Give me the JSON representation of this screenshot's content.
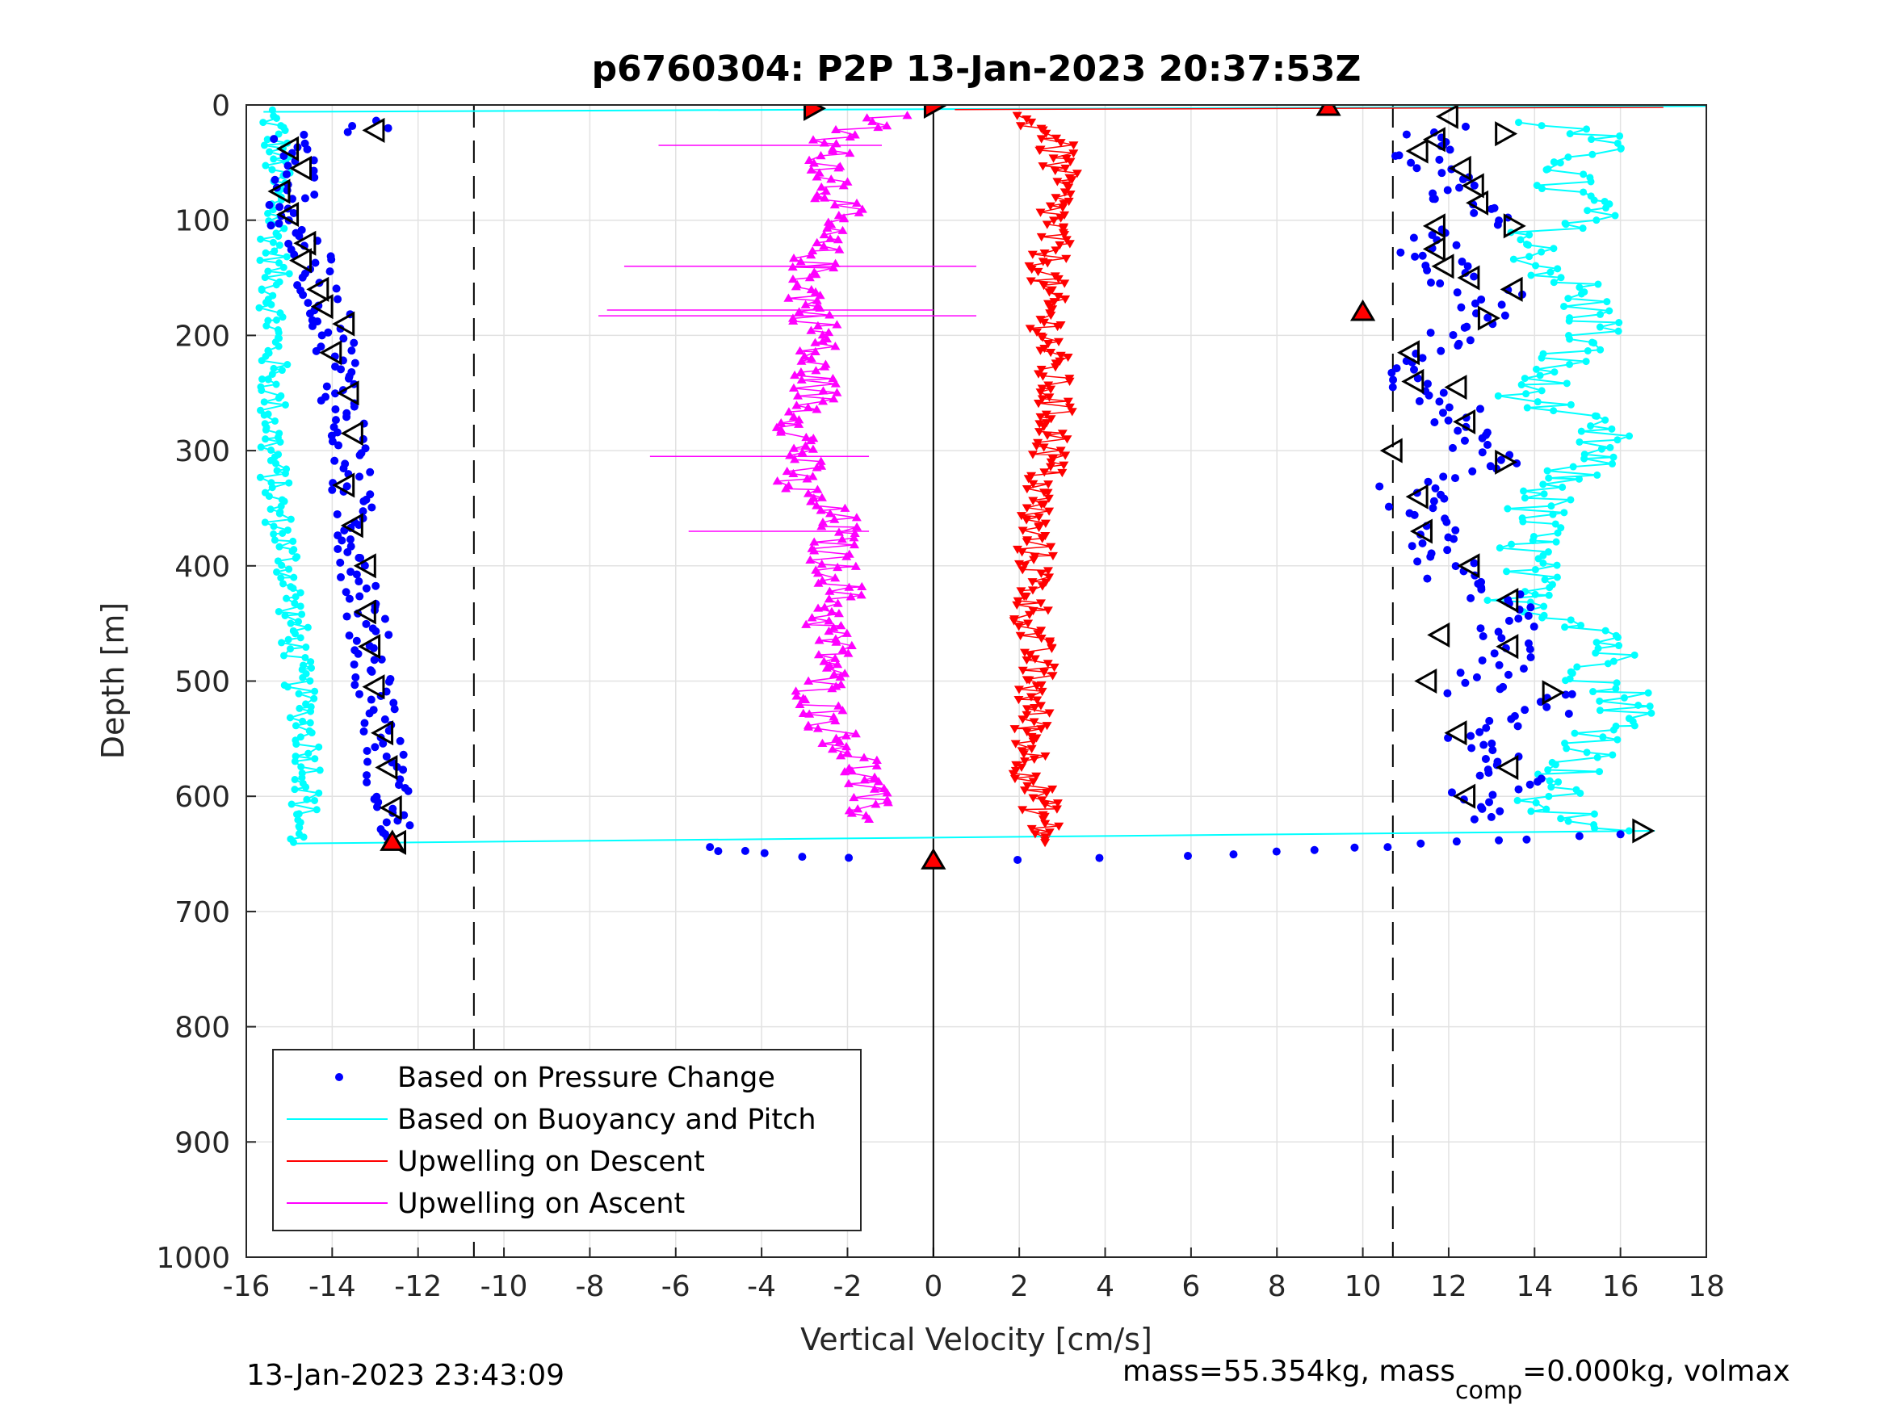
{
  "chart_data": {
    "type": "scatter",
    "title": "p6760304: P2P 13-Jan-2023 20:37:53Z",
    "xlabel": "Vertical Velocity [cm/s]",
    "ylabel": "Depth [m]",
    "xlim": [
      -16,
      18
    ],
    "ylim": [
      0,
      1000
    ],
    "y_reversed": true,
    "grid": true,
    "x_ticks": [
      "-16",
      "-14",
      "-12",
      "-10",
      "-8",
      "-6",
      "-4",
      "-2",
      "0",
      "2",
      "4",
      "6",
      "8",
      "10",
      "12",
      "14",
      "16",
      "18"
    ],
    "y_ticks": [
      "0",
      "100",
      "200",
      "300",
      "400",
      "500",
      "600",
      "700",
      "800",
      "900",
      "1000"
    ],
    "reference_lines": {
      "dashed_x": [
        -10.7,
        10.7
      ],
      "solid_x": [
        0
      ]
    },
    "legend_position": "bottom-left",
    "legend": [
      {
        "label": "Based on Pressure Change",
        "color": "#0000ff",
        "style": "dot"
      },
      {
        "label": "Based on Buoyancy and Pitch",
        "color": "#00ffff",
        "style": "line"
      },
      {
        "label": "Upwelling on Descent",
        "color": "#ff0000",
        "style": "line"
      },
      {
        "label": "Upwelling on Ascent",
        "color": "#ff00ff",
        "style": "line"
      }
    ],
    "series": [
      {
        "name": "Based on Pressure Change",
        "color": "#0000ff",
        "marker": "dot",
        "descent": [
          [
            -13.3,
            15
          ],
          [
            -13,
            20
          ],
          [
            -15,
            30
          ],
          [
            -14.8,
            50
          ],
          [
            -14.9,
            80
          ],
          [
            -15.2,
            100
          ],
          [
            -14.6,
            120
          ],
          [
            -14.4,
            150
          ],
          [
            -14.1,
            180
          ],
          [
            -13.9,
            200
          ],
          [
            -13.8,
            250
          ],
          [
            -13.6,
            290
          ],
          [
            -13.6,
            330
          ],
          [
            -13.5,
            370
          ],
          [
            -13.3,
            410
          ],
          [
            -13.2,
            450
          ],
          [
            -13.1,
            480
          ],
          [
            -12.9,
            520
          ],
          [
            -12.8,
            560
          ],
          [
            -12.7,
            590
          ],
          [
            -12.6,
            620
          ],
          [
            -12.6,
            640
          ]
        ],
        "ascent": [
          [
            11.8,
            20
          ],
          [
            11.3,
            40
          ],
          [
            11.7,
            60
          ],
          [
            12.2,
            80
          ],
          [
            12.9,
            100
          ],
          [
            11.6,
            110
          ],
          [
            11.5,
            130
          ],
          [
            11.9,
            150
          ],
          [
            13.2,
            165
          ],
          [
            11.2,
            230
          ],
          [
            11.4,
            250
          ],
          [
            12.4,
            270
          ],
          [
            12.1,
            290
          ],
          [
            12.9,
            310
          ],
          [
            11.1,
            330
          ],
          [
            11.3,
            360
          ],
          [
            11.8,
            390
          ],
          [
            12.1,
            410
          ],
          [
            13.4,
            430
          ],
          [
            13.4,
            470
          ],
          [
            12.6,
            510
          ],
          [
            14.2,
            510
          ],
          [
            14.1,
            530
          ],
          [
            12.3,
            550
          ],
          [
            13.2,
            570
          ],
          [
            13.6,
            590
          ],
          [
            12.4,
            600
          ],
          [
            12.6,
            620
          ]
        ],
        "turnaround": [
          [
            -5.4,
            645
          ],
          [
            -4,
            650
          ],
          [
            -2,
            654
          ],
          [
            0,
            656
          ],
          [
            2,
            655
          ],
          [
            4,
            653
          ],
          [
            6,
            652
          ],
          [
            8,
            648
          ],
          [
            10,
            645
          ],
          [
            12,
            640
          ],
          [
            14,
            637
          ],
          [
            16,
            633
          ]
        ]
      },
      {
        "name": "Based on Buoyancy and Pitch",
        "color": "#00ffff",
        "marker": "line",
        "descent": [
          [
            -15.5,
            5
          ],
          [
            -15.3,
            20
          ],
          [
            -15.4,
            300
          ],
          [
            -15.3,
            350
          ],
          [
            -15,
            400
          ],
          [
            -14.9,
            450
          ],
          [
            -14.8,
            500
          ],
          [
            -14.6,
            540
          ],
          [
            -14.5,
            580
          ],
          [
            -14.7,
            620
          ],
          [
            -14.9,
            640
          ]
        ],
        "ascent": [
          [
            14.2,
            15
          ],
          [
            15.5,
            30
          ],
          [
            14.5,
            70
          ],
          [
            15.5,
            90
          ],
          [
            13.7,
            120
          ],
          [
            14.7,
            150
          ],
          [
            15.5,
            190
          ],
          [
            13.8,
            250
          ],
          [
            15.6,
            290
          ],
          [
            14,
            350
          ],
          [
            13.7,
            430
          ],
          [
            15.9,
            460
          ],
          [
            15.5,
            500
          ],
          [
            16.4,
            520
          ],
          [
            15.1,
            570
          ],
          [
            14,
            610
          ],
          [
            16.2,
            630
          ]
        ]
      },
      {
        "name": "Upwelling on Descent",
        "color": "#ff0000",
        "marker": "triangle-down",
        "points": [
          [
            1.8,
            10
          ],
          [
            2.6,
            20
          ],
          [
            2.8,
            30
          ],
          [
            2.9,
            50
          ],
          [
            2.9,
            70
          ],
          [
            2.8,
            100
          ],
          [
            2.7,
            130
          ],
          [
            2.6,
            160
          ],
          [
            2.7,
            190
          ],
          [
            2.7,
            220
          ],
          [
            2.8,
            250
          ],
          [
            2.8,
            280
          ],
          [
            2.7,
            310
          ],
          [
            2.4,
            340
          ],
          [
            2.3,
            370
          ],
          [
            2.4,
            400
          ],
          [
            2.3,
            430
          ],
          [
            2.3,
            460
          ],
          [
            2.4,
            490
          ],
          [
            2.3,
            520
          ],
          [
            2.3,
            550
          ],
          [
            2.3,
            580
          ],
          [
            2.5,
            610
          ],
          [
            2.6,
            640
          ]
        ]
      },
      {
        "name": "Upwelling on Ascent",
        "color": "#ff00ff",
        "marker": "triangle-up",
        "points": [
          [
            -1,
            10
          ],
          [
            -2.5,
            30
          ],
          [
            -2.3,
            60
          ],
          [
            -2.2,
            90
          ],
          [
            -2.6,
            110
          ],
          [
            -2.8,
            140
          ],
          [
            -2.9,
            170
          ],
          [
            -2.6,
            200
          ],
          [
            -2.9,
            220
          ],
          [
            -2.7,
            250
          ],
          [
            -3.1,
            280
          ],
          [
            -3,
            300
          ],
          [
            -3.3,
            330
          ],
          [
            -2.2,
            360
          ],
          [
            -2.4,
            390
          ],
          [
            -2.1,
            420
          ],
          [
            -2.5,
            450
          ],
          [
            -2.3,
            480
          ],
          [
            -2.7,
            510
          ],
          [
            -2.4,
            540
          ],
          [
            -1.7,
            570
          ],
          [
            -1.6,
            600
          ],
          [
            -1.5,
            620
          ]
        ]
      }
    ],
    "highlight_markers": {
      "descent_triangles": [
        [
          -13,
          22
        ],
        [
          -15,
          38
        ],
        [
          -14.7,
          55
        ],
        [
          -15.2,
          75
        ],
        [
          -15,
          95
        ],
        [
          -14.6,
          120
        ],
        [
          -14.7,
          135
        ],
        [
          -14.3,
          160
        ],
        [
          -14.2,
          175
        ],
        [
          -13.7,
          190
        ],
        [
          -14,
          215
        ],
        [
          -13.6,
          250
        ],
        [
          -13.5,
          285
        ],
        [
          -13.7,
          330
        ],
        [
          -13.5,
          365
        ],
        [
          -13.2,
          400
        ],
        [
          -13.2,
          440
        ],
        [
          -13.1,
          470
        ],
        [
          -13,
          505
        ],
        [
          -12.8,
          545
        ],
        [
          -12.7,
          575
        ],
        [
          -12.6,
          610
        ],
        [
          -12.5,
          640
        ]
      ],
      "ascent_triangles_left": [
        [
          12,
          10
        ],
        [
          11.7,
          30
        ],
        [
          11.3,
          40
        ],
        [
          12.3,
          55
        ],
        [
          12.6,
          70
        ],
        [
          12.7,
          85
        ],
        [
          11.7,
          105
        ],
        [
          11.7,
          125
        ],
        [
          11.9,
          140
        ],
        [
          12.5,
          150
        ],
        [
          13.5,
          160
        ],
        [
          11.1,
          215
        ],
        [
          11.2,
          240
        ],
        [
          12.2,
          245
        ],
        [
          12.4,
          275
        ],
        [
          10.7,
          300
        ],
        [
          11.3,
          340
        ],
        [
          11.4,
          370
        ],
        [
          12.5,
          400
        ],
        [
          13.4,
          430
        ],
        [
          11.8,
          460
        ],
        [
          13.4,
          470
        ],
        [
          11.5,
          500
        ],
        [
          12.2,
          545
        ],
        [
          13.4,
          575
        ],
        [
          12.4,
          600
        ]
      ],
      "ascent_triangles_right": [
        [
          13.3,
          25
        ],
        [
          13.5,
          105
        ],
        [
          12.9,
          185
        ],
        [
          13.3,
          310
        ],
        [
          14.4,
          510
        ],
        [
          16.5,
          630
        ]
      ],
      "red_markers": [
        [
          -2.8,
          3
        ],
        [
          0,
          1
        ],
        [
          9.2,
          2
        ],
        [
          10,
          180
        ],
        [
          -12.6,
          640
        ],
        [
          0,
          656
        ]
      ]
    }
  },
  "footer": {
    "timestamp": "13-Jan-2023 23:43:09",
    "mass_text": "mass=55.354kg, mass",
    "mass_sub": "comp",
    "mass_tail": "=0.000kg, volmax"
  }
}
